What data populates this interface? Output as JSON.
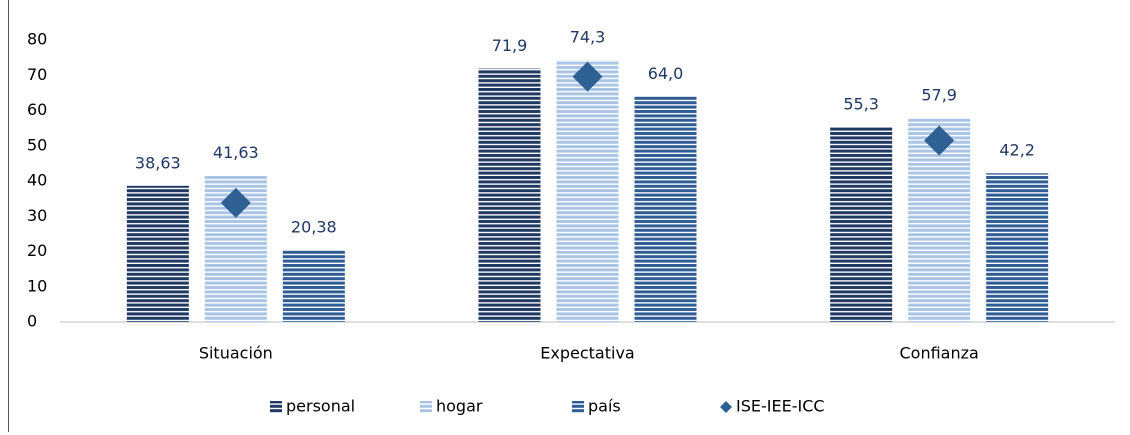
{
  "chart_data": {
    "type": "bar",
    "categories": [
      "Situación",
      "Expectativa",
      "Confianza"
    ],
    "series": [
      {
        "name": "personal",
        "color": "#1f3864",
        "values": [
          38.63,
          71.9,
          55.3
        ],
        "value_labels": [
          "38,63",
          "71,9",
          "55,3"
        ]
      },
      {
        "name": "hogar",
        "color": "#a9c4e4",
        "values": [
          41.63,
          74.3,
          57.9
        ],
        "value_labels": [
          "41,63",
          "74,3",
          "57,9"
        ]
      },
      {
        "name": "país",
        "color": "#2e5c94",
        "values": [
          20.38,
          64.0,
          42.2
        ],
        "value_labels": [
          "20,38",
          "64,0",
          "42,2"
        ]
      },
      {
        "name": "ISE-IEE-ICC",
        "type": "diamond",
        "color": "#2e6094",
        "values": [
          33.8,
          69.6,
          51.5
        ]
      }
    ],
    "ylim": [
      0,
      80
    ],
    "yticks": [
      0,
      10,
      20,
      30,
      40,
      50,
      60,
      70,
      80
    ],
    "legend": "bottom",
    "striped": true
  }
}
